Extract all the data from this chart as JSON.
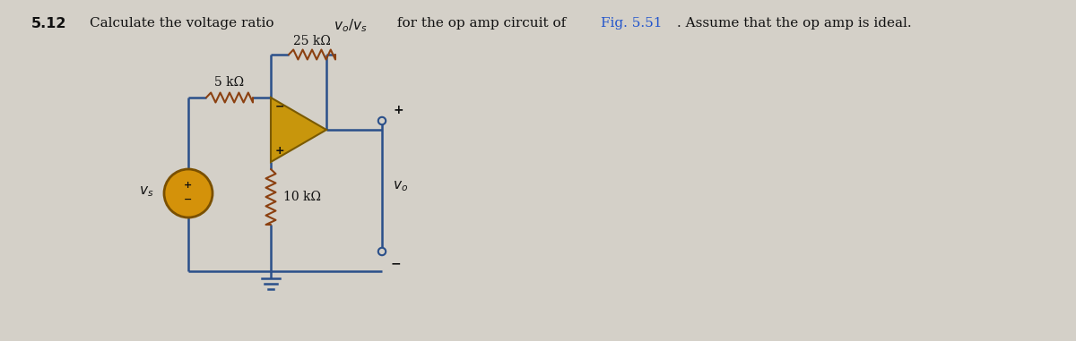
{
  "bg_color": "#d4d0c8",
  "circuit_line_color": "#2a4f8a",
  "resistor_color": "#8B4010",
  "opamp_fill": "#c8960c",
  "opamp_edge": "#7a5a00",
  "source_fill": "#d4920a",
  "source_edge": "#7a5000",
  "label_5k": "5 kΩ",
  "label_25k": "25 kΩ",
  "label_10k": "10 kΩ",
  "fig_color": "#2255cc",
  "text_color": "#111111"
}
